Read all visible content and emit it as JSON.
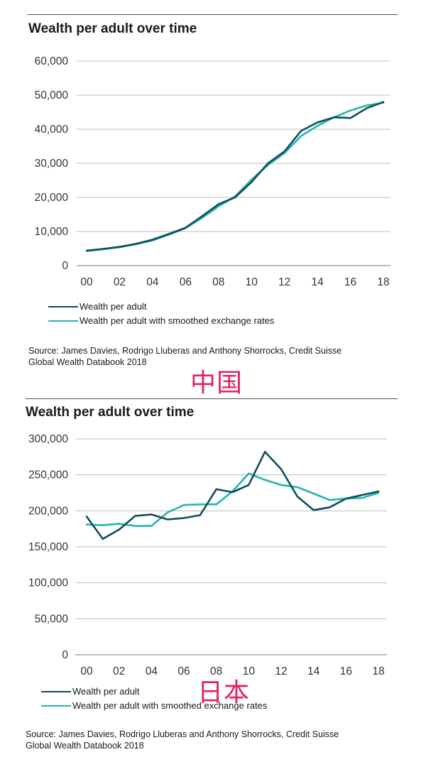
{
  "colors": {
    "series1": "#0f4d5c",
    "series2": "#24b5b0",
    "grid": "#999999",
    "annotation": "#e0245e"
  },
  "annotations": {
    "china": "中国",
    "japan": "日本"
  },
  "chart_data": [
    {
      "type": "line",
      "title": "Wealth per adult over time",
      "x_tick_labels": [
        "00",
        "02",
        "04",
        "06",
        "08",
        "10",
        "12",
        "14",
        "16",
        "18"
      ],
      "y_tick_labels": [
        "0",
        "10,000",
        "20,000",
        "30,000",
        "40,000",
        "50,000",
        "60,000"
      ],
      "x": [
        2000,
        2001,
        2002,
        2003,
        2004,
        2005,
        2006,
        2007,
        2008,
        2009,
        2010,
        2011,
        2012,
        2013,
        2014,
        2015,
        2016,
        2017,
        2018
      ],
      "xlim": [
        2000,
        2018
      ],
      "ylim": [
        0,
        60000
      ],
      "grid": true,
      "legend_position": "bottom-left",
      "series": [
        {
          "name": "Wealth per adult",
          "color": "#0f4d5c",
          "values": [
            4400,
            4900,
            5500,
            6400,
            7600,
            9300,
            11100,
            14500,
            18000,
            20000,
            24500,
            30000,
            33500,
            39500,
            42000,
            43500,
            43300,
            46200,
            48000
          ]
        },
        {
          "name": "Wealth per adult with smoothed exchange rates",
          "color": "#24b5b0",
          "values": [
            4300,
            4800,
            5400,
            6300,
            7400,
            9100,
            11000,
            14000,
            17400,
            20300,
            25200,
            29500,
            33000,
            38000,
            41000,
            43500,
            45500,
            47000,
            47800
          ]
        }
      ],
      "source": [
        "Source: James Davies, Rodrigo Lluberas and Anthony Shorrocks, Credit Suisse",
        "Global Wealth Databook 2018"
      ]
    },
    {
      "type": "line",
      "title": "Wealth per adult over time",
      "x_tick_labels": [
        "00",
        "02",
        "04",
        "06",
        "08",
        "10",
        "12",
        "14",
        "16",
        "18"
      ],
      "y_tick_labels": [
        "0",
        "50,000",
        "100,000",
        "150,000",
        "200,000",
        "250,000",
        "300,000"
      ],
      "x": [
        2000,
        2001,
        2002,
        2003,
        2004,
        2005,
        2006,
        2007,
        2008,
        2009,
        2010,
        2011,
        2012,
        2013,
        2014,
        2015,
        2016,
        2017,
        2018
      ],
      "xlim": [
        2000,
        2018
      ],
      "ylim": [
        0,
        300000
      ],
      "grid": true,
      "legend_position": "bottom-left",
      "series": [
        {
          "name": "Wealth per adult",
          "color": "#0f4d5c",
          "values": [
            192000,
            161000,
            174000,
            193000,
            195000,
            188000,
            190000,
            194000,
            230000,
            226000,
            236000,
            282000,
            258000,
            220000,
            201000,
            205000,
            217000,
            222000,
            227000
          ]
        },
        {
          "name": "Wealth per adult with smoothed exchange rates",
          "color": "#24b5b0",
          "values": [
            181000,
            180000,
            182000,
            179000,
            179000,
            198000,
            208000,
            209000,
            209000,
            227000,
            252000,
            243000,
            236000,
            233000,
            224000,
            215000,
            217000,
            218000,
            225000
          ]
        }
      ],
      "source": [
        "Source: James Davies, Rodrigo Lluberas and Anthony Shorrocks, Credit Suisse",
        "Global Wealth Databook 2018"
      ]
    }
  ]
}
